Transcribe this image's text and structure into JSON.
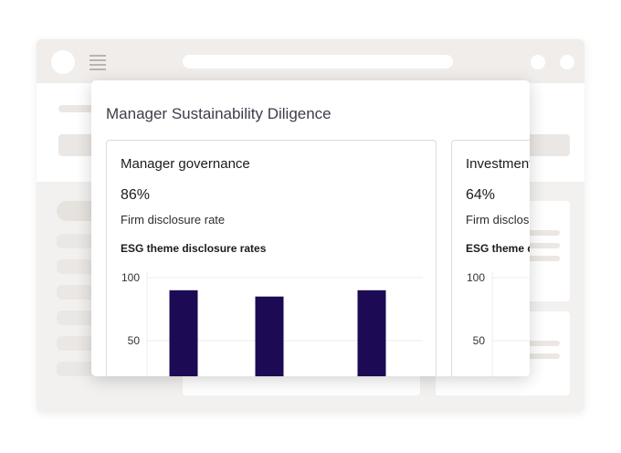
{
  "modal": {
    "title": "Manager Sustainability Diligence"
  },
  "cards": [
    {
      "title": "Manager governance",
      "percent": "86%",
      "subtitle": "Firm disclosure rate",
      "chart_title": "ESG theme disclosure rates"
    },
    {
      "title": "Investment",
      "percent": "64%",
      "subtitle": "Firm disclosu",
      "chart_title": "ESG theme d"
    }
  ],
  "colors": {
    "bar": "#1c0a54",
    "grid": "#ececec",
    "axis_text": "#333333"
  },
  "chart_data": [
    {
      "type": "bar",
      "categories": [
        "",
        "",
        ""
      ],
      "values": [
        90,
        85,
        90
      ],
      "yticks": [
        100,
        50
      ],
      "ylim": [
        0,
        100
      ],
      "title": "ESG theme disclosure rates",
      "xlabel": "",
      "ylabel": "",
      "grid": true
    },
    {
      "type": "bar",
      "categories": [],
      "values": [],
      "yticks": [
        100,
        50
      ],
      "ylim": [
        0,
        100
      ],
      "title": "ESG theme d",
      "xlabel": "",
      "ylabel": "",
      "grid": true
    }
  ]
}
